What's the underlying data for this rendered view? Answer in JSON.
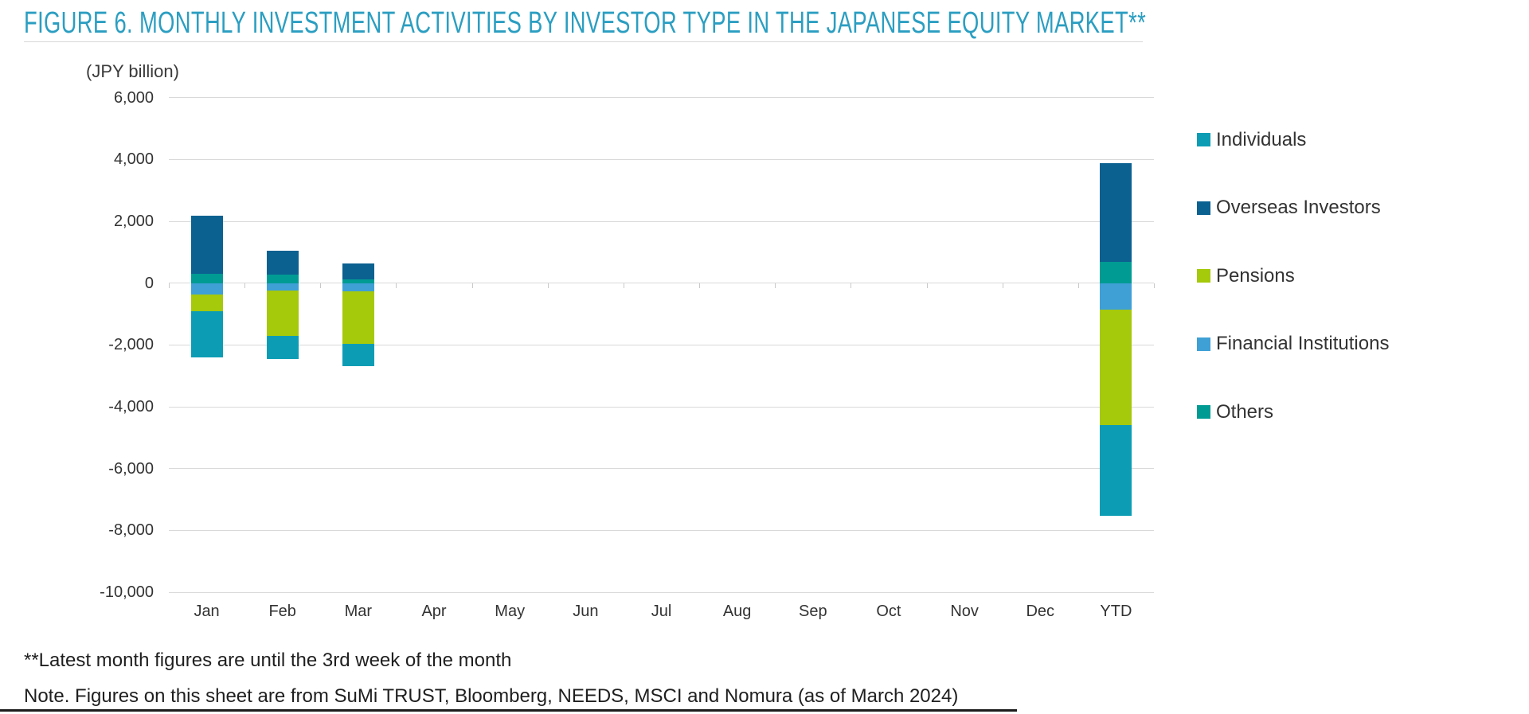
{
  "title": "FIGURE 6. MONTHLY INVESTMENT ACTIVITIES BY INVESTOR TYPE IN THE JAPANESE EQUITY MARKET**",
  "axis_unit_label": "(JPY billion)",
  "footnotes": {
    "line1": "**Latest month figures are until the 3rd week of the month",
    "line2": "Note. Figures on this sheet are from SuMi TRUST, Bloomberg, NEEDS, MSCI and Nomura (as of March 2024)"
  },
  "colors": {
    "title_accent": "#2B9EC1",
    "text": "#333333",
    "gridline": "#d9d9d9",
    "individuals": "#0C9DB5",
    "overseas_investors": "#0B6190",
    "pensions": "#A5C90B",
    "financial_institutions": "#3FA0D6",
    "others": "#009B93"
  },
  "chart_data": {
    "type": "bar",
    "stacked": true,
    "title": "FIGURE 6. MONTHLY INVESTMENT ACTIVITIES BY INVESTOR TYPE IN THE JAPANESE EQUITY MARKET**",
    "ylabel": "(JPY billion)",
    "xlabel": "",
    "ylim": [
      -10000,
      6000
    ],
    "ytick_step": 2000,
    "grid": true,
    "legend_position": "right",
    "categories": [
      "Jan",
      "Feb",
      "Mar",
      "Apr",
      "May",
      "Jun",
      "Jul",
      "Aug",
      "Sep",
      "Oct",
      "Nov",
      "Dec",
      "YTD"
    ],
    "series": [
      {
        "name": "Individuals",
        "color": "#0C9DB5",
        "values": [
          -1490,
          -750,
          -710,
          0,
          0,
          0,
          0,
          0,
          0,
          0,
          0,
          0,
          -2950
        ]
      },
      {
        "name": "Overseas Investors",
        "color": "#0B6190",
        "values": [
          1890,
          770,
          530,
          0,
          0,
          0,
          0,
          0,
          0,
          0,
          0,
          0,
          3190
        ]
      },
      {
        "name": "Pensions",
        "color": "#A5C90B",
        "values": [
          -540,
          -1480,
          -1700,
          0,
          0,
          0,
          0,
          0,
          0,
          0,
          0,
          0,
          -3720
        ]
      },
      {
        "name": "Financial Institutions",
        "color": "#3FA0D6",
        "values": [
          -370,
          -230,
          -270,
          0,
          0,
          0,
          0,
          0,
          0,
          0,
          0,
          0,
          -870
        ]
      },
      {
        "name": "Others",
        "color": "#009B93",
        "values": [
          290,
          280,
          110,
          0,
          0,
          0,
          0,
          0,
          0,
          0,
          0,
          0,
          680
        ]
      }
    ]
  }
}
